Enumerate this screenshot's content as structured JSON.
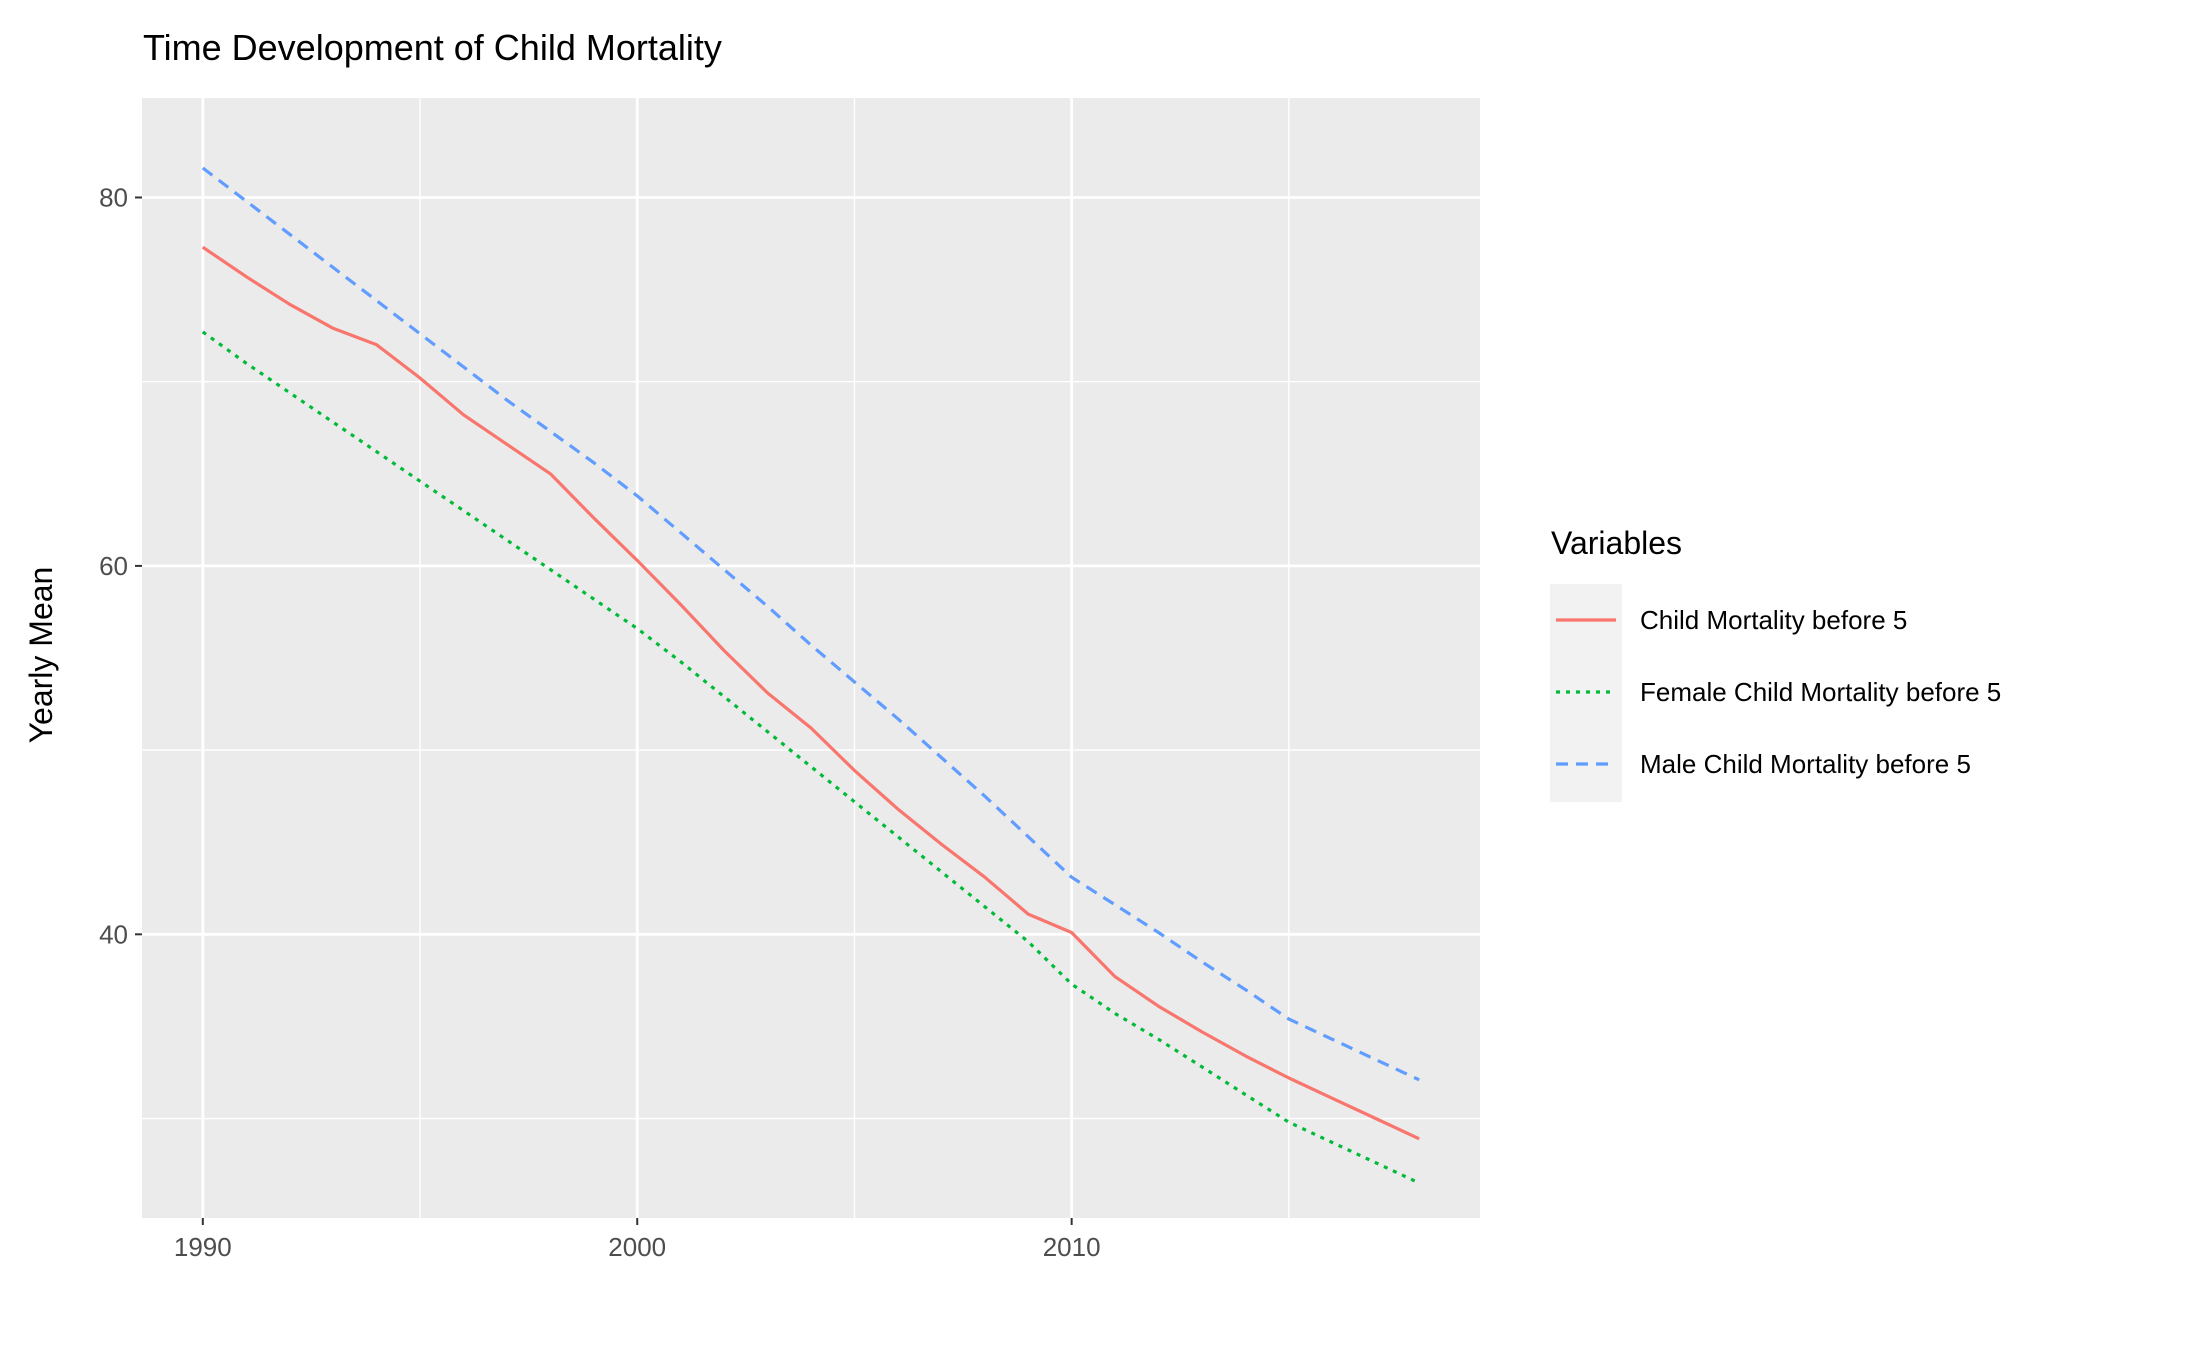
{
  "chart_data": {
    "type": "line",
    "title": "Time Development of Child Mortality",
    "xlabel": "",
    "ylabel": "Yearly Mean",
    "xlim": [
      1988.6,
      2019.4
    ],
    "ylim": [
      24.6,
      85.4
    ],
    "x_ticks": [
      1990,
      2000,
      2010
    ],
    "y_ticks": [
      40,
      60,
      80
    ],
    "x_minor": [
      1995,
      2005,
      2015
    ],
    "y_minor": [
      30,
      50,
      70
    ],
    "grid": true,
    "legend_title": "Variables",
    "legend_position": "right",
    "x": [
      1990,
      1991,
      1992,
      1993,
      1994,
      1995,
      1996,
      1997,
      1998,
      1999,
      2000,
      2001,
      2002,
      2003,
      2004,
      2005,
      2006,
      2007,
      2008,
      2009,
      2010,
      2011,
      2012,
      2013,
      2014,
      2015,
      2016,
      2017,
      2018
    ],
    "series": [
      {
        "name": "Child Mortality before 5",
        "color": "#F8766D",
        "dash": "solid",
        "values": [
          77.3,
          75.7,
          74.2,
          72.9,
          72.0,
          70.2,
          68.2,
          66.6,
          65.0,
          62.6,
          60.3,
          57.9,
          55.4,
          53.1,
          51.2,
          48.9,
          46.8,
          44.9,
          43.1,
          41.1,
          40.1,
          37.7,
          36.1,
          34.7,
          33.4,
          32.2,
          31.1,
          30.0,
          28.9
        ],
        "data_name": "series-line-child-mortality"
      },
      {
        "name": "Female Child Mortality before 5",
        "color": "#00BA38",
        "dash": "dotted",
        "values": [
          72.7,
          71.0,
          69.4,
          67.8,
          66.2,
          64.6,
          63.0,
          61.4,
          59.8,
          58.2,
          56.6,
          54.8,
          52.9,
          51.0,
          49.1,
          47.2,
          45.3,
          43.4,
          41.5,
          39.6,
          37.3,
          35.7,
          34.3,
          32.8,
          31.3,
          29.8,
          28.7,
          27.6,
          26.5
        ],
        "data_name": "series-line-female-child-mortality"
      },
      {
        "name": "Male Child Mortality before 5",
        "color": "#619CFF",
        "dash": "dashed",
        "values": [
          81.6,
          79.8,
          78.0,
          76.2,
          74.4,
          72.6,
          70.8,
          69.0,
          67.3,
          65.6,
          63.8,
          61.8,
          59.8,
          57.8,
          55.7,
          53.7,
          51.7,
          49.6,
          47.5,
          45.3,
          43.1,
          41.6,
          40.1,
          38.5,
          37.0,
          35.4,
          34.3,
          33.2,
          32.1
        ],
        "data_name": "series-line-male-child-mortality"
      }
    ]
  }
}
